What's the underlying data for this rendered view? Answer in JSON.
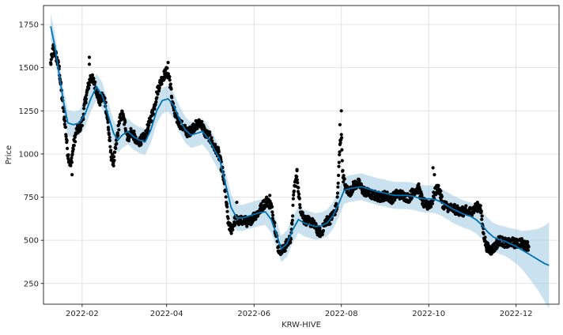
{
  "chart_data": {
    "type": "line",
    "title": "",
    "xlabel": "KRW-HIVE",
    "ylabel": "Price",
    "x_tick_labels": [
      "2022-02",
      "2022-04",
      "2022-06",
      "2022-08",
      "2022-10",
      "2022-12"
    ],
    "x_tick_dates": [
      "2022-02-01",
      "2022-04-01",
      "2022-06-01",
      "2022-08-01",
      "2022-10-01",
      "2022-12-01"
    ],
    "y_tick_labels": [
      "250",
      "500",
      "750",
      "1000",
      "1250",
      "1500",
      "1750"
    ],
    "y_tick_values": [
      250,
      500,
      750,
      1000,
      1250,
      1500,
      1750
    ],
    "xlim": [
      "2022-01-05",
      "2022-12-31"
    ],
    "ylim": [
      130,
      1860
    ],
    "grid": true,
    "legend": "none",
    "colors": {
      "actual": "#000000",
      "forecast": "#0072B2",
      "interval": "#9ecae1"
    },
    "forecast": {
      "name": "yhat",
      "points": [
        [
          "2022-01-10",
          1740
        ],
        [
          "2022-01-13",
          1620
        ],
        [
          "2022-01-16",
          1460
        ],
        [
          "2022-01-19",
          1300
        ],
        [
          "2022-01-22",
          1180
        ],
        [
          "2022-01-26",
          1170
        ],
        [
          "2022-01-30",
          1180
        ],
        [
          "2022-02-03",
          1230
        ],
        [
          "2022-02-07",
          1320
        ],
        [
          "2022-02-11",
          1390
        ],
        [
          "2022-02-15",
          1340
        ],
        [
          "2022-02-19",
          1230
        ],
        [
          "2022-02-23",
          1120
        ],
        [
          "2022-02-26",
          1080
        ],
        [
          "2022-03-01",
          1110
        ],
        [
          "2022-03-05",
          1130
        ],
        [
          "2022-03-09",
          1100
        ],
        [
          "2022-03-13",
          1080
        ],
        [
          "2022-03-17",
          1070
        ],
        [
          "2022-03-21",
          1140
        ],
        [
          "2022-03-25",
          1250
        ],
        [
          "2022-03-29",
          1310
        ],
        [
          "2022-04-02",
          1320
        ],
        [
          "2022-04-06",
          1280
        ],
        [
          "2022-04-10",
          1200
        ],
        [
          "2022-04-14",
          1140
        ],
        [
          "2022-04-18",
          1110
        ],
        [
          "2022-04-22",
          1120
        ],
        [
          "2022-04-26",
          1130
        ],
        [
          "2022-04-30",
          1090
        ],
        [
          "2022-05-04",
          1030
        ],
        [
          "2022-05-08",
          970
        ],
        [
          "2022-05-12",
          830
        ],
        [
          "2022-05-16",
          690
        ],
        [
          "2022-05-20",
          630
        ],
        [
          "2022-05-24",
          630
        ],
        [
          "2022-05-28",
          640
        ],
        [
          "2022-06-01",
          650
        ],
        [
          "2022-06-05",
          660
        ],
        [
          "2022-06-09",
          665
        ],
        [
          "2022-06-13",
          620
        ],
        [
          "2022-06-17",
          530
        ],
        [
          "2022-06-20",
          450
        ],
        [
          "2022-06-24",
          480
        ],
        [
          "2022-06-28",
          560
        ],
        [
          "2022-07-02",
          620
        ],
        [
          "2022-07-06",
          600
        ],
        [
          "2022-07-10",
          590
        ],
        [
          "2022-07-14",
          580
        ],
        [
          "2022-07-18",
          585
        ],
        [
          "2022-07-22",
          600
        ],
        [
          "2022-07-26",
          640
        ],
        [
          "2022-07-30",
          710
        ],
        [
          "2022-08-03",
          790
        ],
        [
          "2022-08-07",
          800
        ],
        [
          "2022-08-11",
          805
        ],
        [
          "2022-08-15",
          810
        ],
        [
          "2022-08-19",
          800
        ],
        [
          "2022-08-23",
          790
        ],
        [
          "2022-08-27",
          780
        ],
        [
          "2022-08-31",
          775
        ],
        [
          "2022-09-04",
          765
        ],
        [
          "2022-09-08",
          760
        ],
        [
          "2022-09-12",
          760
        ],
        [
          "2022-09-16",
          760
        ],
        [
          "2022-09-20",
          755
        ],
        [
          "2022-09-24",
          745
        ],
        [
          "2022-09-28",
          740
        ],
        [
          "2022-10-02",
          740
        ],
        [
          "2022-10-06",
          735
        ],
        [
          "2022-10-10",
          720
        ],
        [
          "2022-10-14",
          700
        ],
        [
          "2022-10-18",
          680
        ],
        [
          "2022-10-22",
          665
        ],
        [
          "2022-10-26",
          650
        ],
        [
          "2022-10-30",
          640
        ],
        [
          "2022-11-03",
          620
        ],
        [
          "2022-11-07",
          590
        ],
        [
          "2022-11-11",
          550
        ],
        [
          "2022-11-15",
          520
        ],
        [
          "2022-11-19",
          505
        ],
        [
          "2022-11-23",
          495
        ],
        [
          "2022-11-27",
          480
        ],
        [
          "2022-12-01",
          465
        ],
        [
          "2022-12-05",
          445
        ],
        [
          "2022-12-09",
          425
        ],
        [
          "2022-12-13",
          405
        ],
        [
          "2022-12-17",
          385
        ],
        [
          "2022-12-21",
          365
        ],
        [
          "2022-12-24",
          355
        ]
      ],
      "interval_halfwidth_points": [
        [
          "2022-01-10",
          75
        ],
        [
          "2022-05-01",
          75
        ],
        [
          "2022-11-10",
          80
        ],
        [
          "2022-11-25",
          85
        ],
        [
          "2022-12-05",
          110
        ],
        [
          "2022-12-12",
          150
        ],
        [
          "2022-12-18",
          190
        ],
        [
          "2022-12-24",
          250
        ]
      ]
    },
    "actual_sketch": {
      "name": "y",
      "points": [
        [
          "2022-01-10",
          1520
        ],
        [
          "2022-01-12",
          1620
        ],
        [
          "2022-01-14",
          1560
        ],
        [
          "2022-01-16",
          1490
        ],
        [
          "2022-01-18",
          1320
        ],
        [
          "2022-01-20",
          1180
        ],
        [
          "2022-01-22",
          1000
        ],
        [
          "2022-01-24",
          930
        ],
        [
          "2022-01-26",
          1050
        ],
        [
          "2022-01-28",
          1130
        ],
        [
          "2022-01-30",
          1150
        ],
        [
          "2022-02-01",
          1180
        ],
        [
          "2022-02-03",
          1300
        ],
        [
          "2022-02-05",
          1380
        ],
        [
          "2022-02-07",
          1450
        ],
        [
          "2022-02-09",
          1420
        ],
        [
          "2022-02-11",
          1370
        ],
        [
          "2022-02-13",
          1300
        ],
        [
          "2022-02-15",
          1330
        ],
        [
          "2022-02-17",
          1310
        ],
        [
          "2022-02-19",
          1180
        ],
        [
          "2022-02-21",
          1000
        ],
        [
          "2022-02-23",
          950
        ],
        [
          "2022-02-25",
          1070
        ],
        [
          "2022-02-27",
          1190
        ],
        [
          "2022-03-01",
          1230
        ],
        [
          "2022-03-03",
          1170
        ],
        [
          "2022-03-05",
          1090
        ],
        [
          "2022-03-07",
          1130
        ],
        [
          "2022-03-09",
          1110
        ],
        [
          "2022-03-11",
          1060
        ],
        [
          "2022-03-14",
          1080
        ],
        [
          "2022-03-17",
          1100
        ],
        [
          "2022-03-20",
          1180
        ],
        [
          "2022-03-23",
          1260
        ],
        [
          "2022-03-26",
          1380
        ],
        [
          "2022-03-29",
          1440
        ],
        [
          "2022-04-01",
          1480
        ],
        [
          "2022-04-03",
          1440
        ],
        [
          "2022-04-05",
          1300
        ],
        [
          "2022-04-07",
          1220
        ],
        [
          "2022-04-10",
          1180
        ],
        [
          "2022-04-13",
          1150
        ],
        [
          "2022-04-16",
          1120
        ],
        [
          "2022-04-19",
          1150
        ],
        [
          "2022-04-22",
          1170
        ],
        [
          "2022-04-25",
          1180
        ],
        [
          "2022-04-28",
          1120
        ],
        [
          "2022-05-01",
          1100
        ],
        [
          "2022-05-04",
          1040
        ],
        [
          "2022-05-07",
          1010
        ],
        [
          "2022-05-10",
          900
        ],
        [
          "2022-05-12",
          780
        ],
        [
          "2022-05-14",
          600
        ],
        [
          "2022-05-16",
          560
        ],
        [
          "2022-05-19",
          620
        ],
        [
          "2022-05-22",
          610
        ],
        [
          "2022-05-25",
          620
        ],
        [
          "2022-05-28",
          600
        ],
        [
          "2022-06-01",
          640
        ],
        [
          "2022-06-04",
          660
        ],
        [
          "2022-06-07",
          700
        ],
        [
          "2022-06-10",
          730
        ],
        [
          "2022-06-13",
          700
        ],
        [
          "2022-06-16",
          560
        ],
        [
          "2022-06-18",
          450
        ],
        [
          "2022-06-21",
          440
        ],
        [
          "2022-06-24",
          480
        ],
        [
          "2022-06-27",
          520
        ],
        [
          "2022-06-29",
          800
        ],
        [
          "2022-07-01",
          880
        ],
        [
          "2022-07-03",
          700
        ],
        [
          "2022-07-06",
          620
        ],
        [
          "2022-07-09",
          610
        ],
        [
          "2022-07-12",
          600
        ],
        [
          "2022-07-15",
          560
        ],
        [
          "2022-07-18",
          540
        ],
        [
          "2022-07-21",
          610
        ],
        [
          "2022-07-24",
          620
        ],
        [
          "2022-07-27",
          660
        ],
        [
          "2022-07-29",
          700
        ],
        [
          "2022-07-31",
          1050
        ],
        [
          "2022-08-01",
          1120
        ],
        [
          "2022-08-02",
          880
        ],
        [
          "2022-08-04",
          800
        ],
        [
          "2022-08-07",
          780
        ],
        [
          "2022-08-10",
          820
        ],
        [
          "2022-08-13",
          830
        ],
        [
          "2022-08-16",
          790
        ],
        [
          "2022-08-20",
          770
        ],
        [
          "2022-08-24",
          760
        ],
        [
          "2022-08-28",
          750
        ],
        [
          "2022-09-01",
          760
        ],
        [
          "2022-09-05",
          740
        ],
        [
          "2022-09-09",
          770
        ],
        [
          "2022-09-13",
          760
        ],
        [
          "2022-09-17",
          745
        ],
        [
          "2022-09-21",
          790
        ],
        [
          "2022-09-24",
          800
        ],
        [
          "2022-09-27",
          720
        ],
        [
          "2022-09-30",
          700
        ],
        [
          "2022-10-03",
          720
        ],
        [
          "2022-10-06",
          790
        ],
        [
          "2022-10-08",
          800
        ],
        [
          "2022-10-11",
          710
        ],
        [
          "2022-10-15",
          690
        ],
        [
          "2022-10-19",
          680
        ],
        [
          "2022-10-23",
          670
        ],
        [
          "2022-10-27",
          660
        ],
        [
          "2022-10-31",
          670
        ],
        [
          "2022-11-03",
          690
        ],
        [
          "2022-11-06",
          700
        ],
        [
          "2022-11-08",
          560
        ],
        [
          "2022-11-10",
          470
        ],
        [
          "2022-11-13",
          440
        ],
        [
          "2022-11-16",
          460
        ],
        [
          "2022-11-19",
          500
        ],
        [
          "2022-11-22",
          490
        ],
        [
          "2022-11-25",
          480
        ],
        [
          "2022-11-28",
          490
        ],
        [
          "2022-12-01",
          480
        ],
        [
          "2022-12-04",
          490
        ],
        [
          "2022-12-07",
          470
        ],
        [
          "2022-12-10",
          470
        ]
      ],
      "outlier_points": [
        [
          "2022-02-06",
          1560
        ],
        [
          "2022-02-06",
          1520
        ],
        [
          "2022-04-02",
          1530
        ],
        [
          "2022-07-01",
          910
        ],
        [
          "2022-07-31",
          1170
        ],
        [
          "2022-08-01",
          1250
        ],
        [
          "2022-10-04",
          920
        ],
        [
          "2022-10-05",
          880
        ],
        [
          "2022-10-27",
          700
        ],
        [
          "2022-05-20",
          720
        ],
        [
          "2022-06-12",
          760
        ],
        [
          "2022-01-25",
          880
        ]
      ]
    }
  }
}
